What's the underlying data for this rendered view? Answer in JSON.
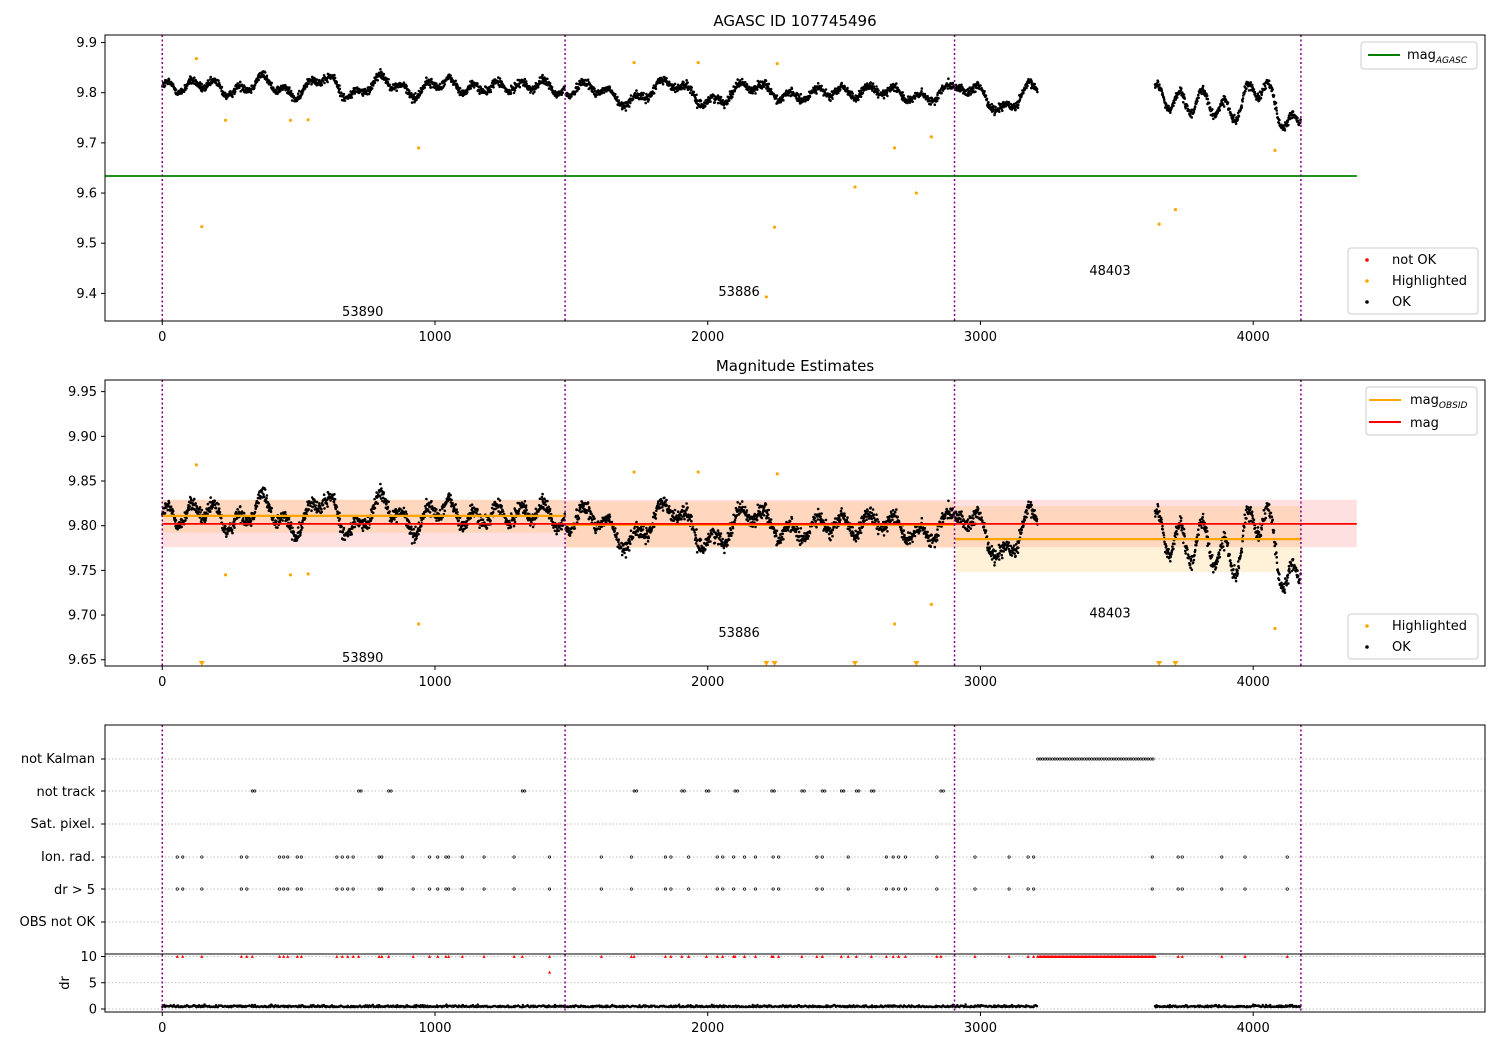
{
  "chart_data": [
    {
      "type": "scatter",
      "title": "AGASC ID 107745496",
      "xlim": [
        -210,
        4850
      ],
      "ylim": [
        9.345,
        9.915
      ],
      "xticks": [
        0,
        1000,
        2000,
        3000,
        4000
      ],
      "yticks": [
        9.4,
        9.5,
        9.6,
        9.7,
        9.8,
        9.9
      ],
      "obs_boundaries": [
        0,
        1477,
        2905,
        4175
      ],
      "obs_labels": [
        {
          "x": 735,
          "y": 9.365,
          "text": "53890"
        },
        {
          "x": 2115,
          "y": 9.405,
          "text": "53886"
        },
        {
          "x": 3475,
          "y": 9.447,
          "text": "48403"
        }
      ],
      "mag_agasc": 9.634,
      "legend_lines": [
        {
          "name": "mag",
          "sub": "AGASC",
          "color": "#008000"
        }
      ],
      "legend_points": [
        {
          "name": "not OK",
          "color": "#ff0000"
        },
        {
          "name": "Highlighted",
          "color": "#ffa500"
        },
        {
          "name": "OK",
          "color": "#000000"
        }
      ],
      "ok_segments": [
        {
          "x0": 0,
          "x1": 1477,
          "mean": 9.812
        },
        {
          "x0": 1480,
          "x1": 2905,
          "mean": 9.8
        },
        {
          "x0": 2908,
          "x1": 3210,
          "mean": 9.79
        },
        {
          "x0": 3640,
          "x1": 4175,
          "mean": 9.78
        }
      ],
      "highlighted": [
        [
          125,
          9.868
        ],
        [
          145,
          9.533
        ],
        [
          232,
          9.745
        ],
        [
          470,
          9.745
        ],
        [
          535,
          9.746
        ],
        [
          940,
          9.69
        ],
        [
          1730,
          9.86
        ],
        [
          1965,
          9.86
        ],
        [
          2215,
          9.393
        ],
        [
          2245,
          9.532
        ],
        [
          2255,
          9.858
        ],
        [
          2540,
          9.612
        ],
        [
          2685,
          9.69
        ],
        [
          2765,
          9.6
        ],
        [
          2820,
          9.712
        ],
        [
          3655,
          9.538
        ],
        [
          3715,
          9.567
        ],
        [
          4080,
          9.685
        ]
      ]
    },
    {
      "type": "scatter",
      "title": "Magnitude Estimates",
      "xlim": [
        -210,
        4850
      ],
      "ylim": [
        9.643,
        9.963
      ],
      "xticks": [
        0,
        1000,
        2000,
        3000,
        4000
      ],
      "yticks": [
        9.65,
        9.7,
        9.75,
        9.8,
        9.85,
        9.9,
        9.95
      ],
      "obs_boundaries": [
        0,
        1477,
        2905,
        4175
      ],
      "obs_labels": [
        {
          "x": 735,
          "y": 9.653,
          "text": "53890"
        },
        {
          "x": 2115,
          "y": 9.681,
          "text": "53886"
        },
        {
          "x": 3475,
          "y": 9.703,
          "text": "48403"
        }
      ],
      "mag": 9.802,
      "mag_band": [
        9.776,
        9.829
      ],
      "mag_obsid": [
        {
          "x0": 0,
          "x1": 1477,
          "value": 9.811,
          "band": [
            9.792,
            9.829
          ]
        },
        {
          "x0": 1480,
          "x1": 2905,
          "value": 9.801,
          "band": [
            9.775,
            9.827
          ]
        },
        {
          "x0": 2908,
          "x1": 4175,
          "value": 9.785,
          "band": [
            9.748,
            9.822
          ]
        }
      ],
      "legend_lines": [
        {
          "name": "mag",
          "sub": "OBSID",
          "color": "#ffa500"
        },
        {
          "name": "mag",
          "sub": "",
          "color": "#ff0000"
        }
      ],
      "legend_points": [
        {
          "name": "Highlighted",
          "color": "#ffa500"
        },
        {
          "name": "OK",
          "color": "#000000"
        }
      ],
      "out_of_range": [
        145,
        2215,
        2245,
        2540,
        2765,
        3655,
        3715
      ]
    },
    {
      "type": "scatter",
      "categories": [
        "not Kalman",
        "not track",
        "Sat. pixel.",
        "Ion. rad.",
        "dr > 5",
        "OBS not OK"
      ],
      "xlim": [
        -210,
        4850
      ],
      "xticks": [
        0,
        1000,
        2000,
        3000,
        4000
      ],
      "obs_boundaries": [
        0,
        1477,
        2905,
        4175
      ],
      "not_kalman_range": [
        3210,
        3640
      ],
      "not_track": [
        330,
        720,
        830,
        1320,
        1730,
        1905,
        1995,
        2100,
        2235,
        2345,
        2420,
        2490,
        2545,
        2600,
        2855
      ],
      "ion_rad": [
        55,
        75,
        145,
        290,
        310,
        430,
        445,
        460,
        495,
        510,
        640,
        660,
        680,
        700,
        795,
        805,
        920,
        980,
        1010,
        1040,
        1050,
        1100,
        1180,
        1290,
        1420,
        1610,
        1720,
        1845,
        1865,
        1930,
        2035,
        2055,
        2095,
        2135,
        2175,
        2240,
        2260,
        2400,
        2420,
        2515,
        2655,
        2680,
        2700,
        2725,
        2840,
        2980,
        3105,
        3175,
        3195,
        3630,
        3725,
        3740,
        3885,
        3970,
        4125
      ],
      "dr_ylabel": "dr",
      "dr_yticks": [
        0,
        5,
        10
      ]
    }
  ]
}
